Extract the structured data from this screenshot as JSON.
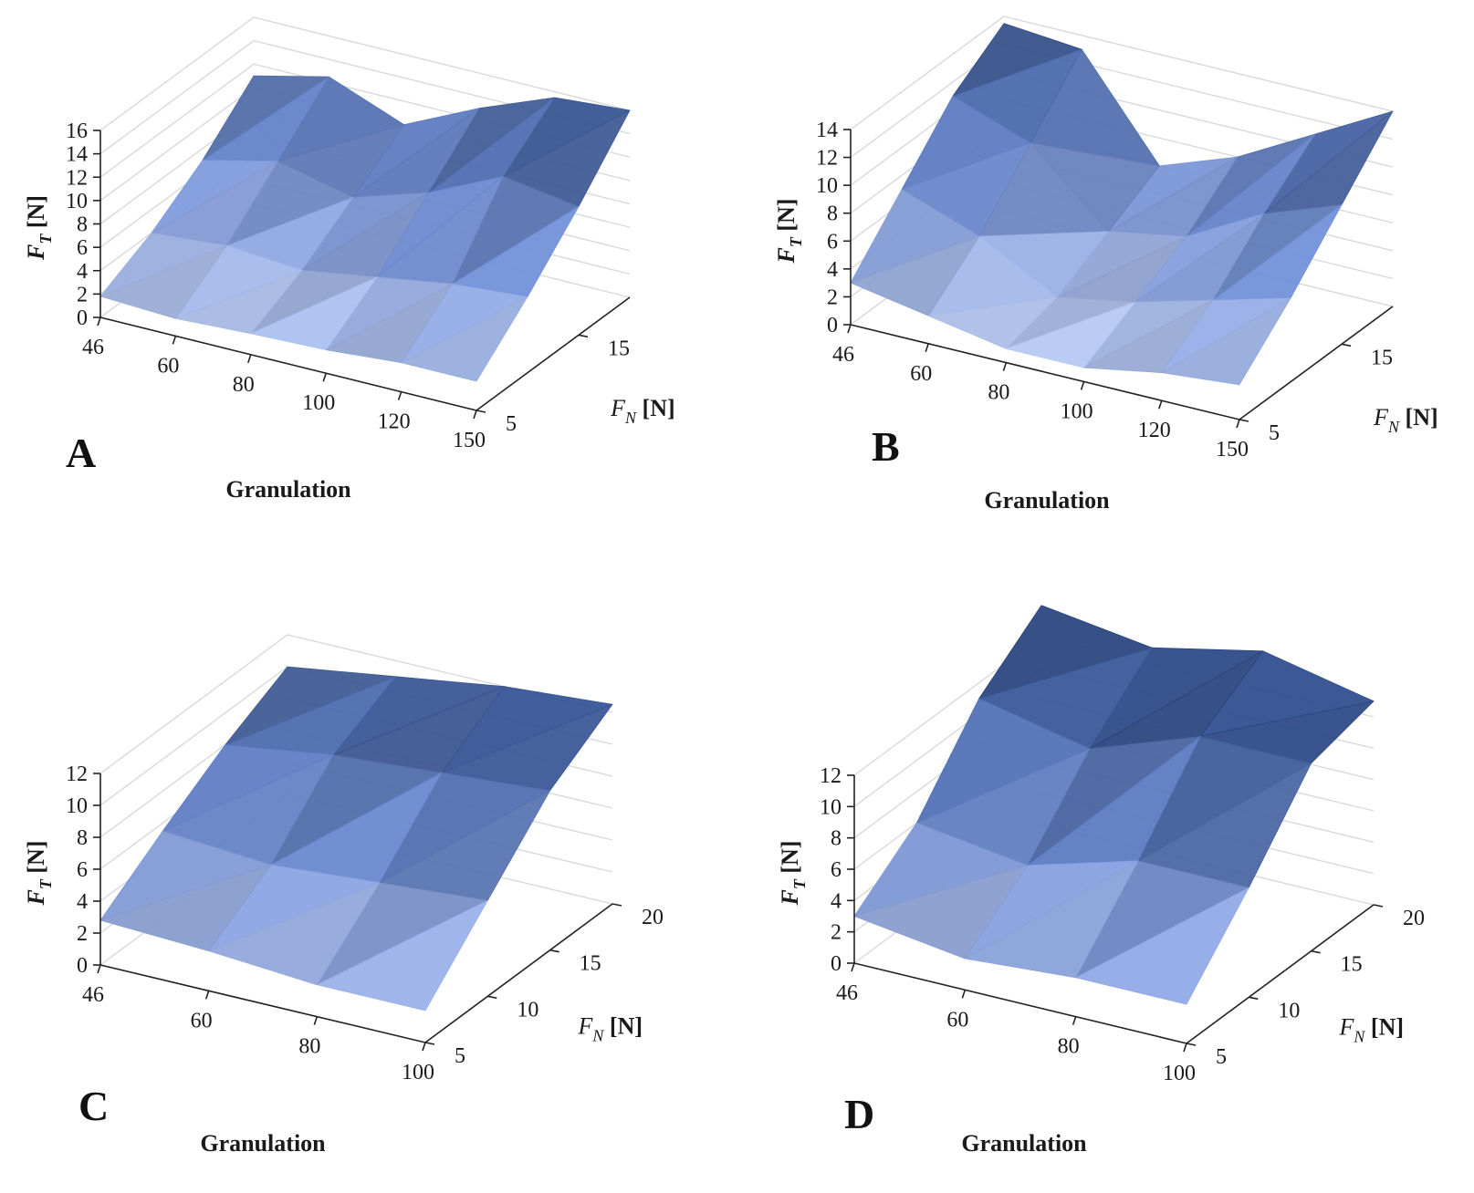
{
  "figure": {
    "colors": {
      "low": "#c8d6f8",
      "mid": "#6f8ed8",
      "high": "#2f4f92",
      "bright": "#6aa0ff"
    }
  },
  "chart_data": [
    {
      "type": "surface3d",
      "panel": "A",
      "xlabel": "Granulation",
      "ylabel": {
        "italic": "F",
        "sub": "N",
        "unit": " [N]"
      },
      "zlabel": {
        "italic": "F",
        "sub": "T",
        "unit": " [N]"
      },
      "x_ticks": [
        "46",
        "60",
        "80",
        "100",
        "120",
        "150"
      ],
      "y_ticks": [
        "5",
        "15"
      ],
      "y_values": [
        5,
        10,
        15,
        20
      ],
      "z_ticks": [
        "0",
        "2",
        "4",
        "6",
        "8",
        "10",
        "12",
        "14",
        "16"
      ],
      "zlim": [
        0,
        16
      ],
      "z": [
        [
          1.8,
          4.0,
          7.0,
          11.0
        ],
        [
          1.5,
          4.5,
          8.5,
          12.5
        ],
        [
          1.8,
          4.0,
          7.0,
          10.0
        ],
        [
          2.0,
          5.0,
          9.0,
          13.0
        ],
        [
          2.5,
          6.0,
          12.0,
          15.5
        ],
        [
          2.5,
          6.5,
          11.0,
          16.0
        ]
      ]
    },
    {
      "type": "surface3d",
      "panel": "B",
      "xlabel": "Granulation",
      "ylabel": {
        "italic": "F",
        "sub": "N",
        "unit": " [N]"
      },
      "zlabel": {
        "italic": "F",
        "sub": "T",
        "unit": " [N]"
      },
      "x_ticks": [
        "46",
        "60",
        "80",
        "100",
        "120",
        "150"
      ],
      "y_ticks": [
        "5",
        "15"
      ],
      "y_values": [
        5,
        10,
        15,
        20
      ],
      "z_ticks": [
        "0",
        "2",
        "4",
        "6",
        "8",
        "10",
        "12",
        "14"
      ],
      "zlim": [
        0,
        14
      ],
      "z": [
        [
          3.0,
          7.0,
          11.0,
          13.5
        ],
        [
          2.0,
          5.0,
          9.0,
          13.0
        ],
        [
          1.0,
          2.0,
          4.0,
          6.0
        ],
        [
          1.0,
          3.0,
          5.0,
          8.0
        ],
        [
          2.0,
          4.5,
          8.0,
          11.0
        ],
        [
          2.5,
          6.0,
          10.0,
          14.0
        ]
      ]
    },
    {
      "type": "surface3d",
      "panel": "C",
      "xlabel": "Granulation",
      "ylabel": {
        "italic": "F",
        "sub": "N",
        "unit": " [N]"
      },
      "zlabel": {
        "italic": "F",
        "sub": "T",
        "unit": " [N]"
      },
      "x_ticks": [
        "46",
        "60",
        "80",
        "100"
      ],
      "y_ticks": [
        "5",
        "10",
        "15",
        "20"
      ],
      "y_values": [
        5,
        10,
        15,
        20
      ],
      "z_ticks": [
        "0",
        "2",
        "4",
        "6",
        "8",
        "10",
        "12"
      ],
      "zlim": [
        0,
        12
      ],
      "z": [
        [
          2.8,
          5.5,
          8.0,
          10.0
        ],
        [
          2.5,
          5.0,
          9.0,
          11.0
        ],
        [
          2.0,
          5.5,
          9.5,
          12.0
        ],
        [
          2.0,
          6.0,
          10.0,
          12.5
        ]
      ]
    },
    {
      "type": "surface3d",
      "panel": "D",
      "xlabel": "Granulation",
      "ylabel": {
        "italic": "F",
        "sub": "N",
        "unit": " [N]"
      },
      "zlabel": {
        "italic": "F",
        "sub": "T",
        "unit": " [N]"
      },
      "x_ticks": [
        "46",
        "60",
        "80",
        "100"
      ],
      "y_ticks": [
        "5",
        "10",
        "15",
        "20"
      ],
      "y_values": [
        5,
        10,
        15,
        20
      ],
      "z_ticks": [
        "0",
        "2",
        "4",
        "6",
        "8",
        "10",
        "12"
      ],
      "zlim": [
        0,
        12
      ],
      "z": [
        [
          3.0,
          6.0,
          11.0,
          14.0
        ],
        [
          2.0,
          5.0,
          9.5,
          13.0
        ],
        [
          2.5,
          7.0,
          12.0,
          14.5
        ],
        [
          2.5,
          7.0,
          12.0,
          13.0
        ]
      ]
    }
  ]
}
